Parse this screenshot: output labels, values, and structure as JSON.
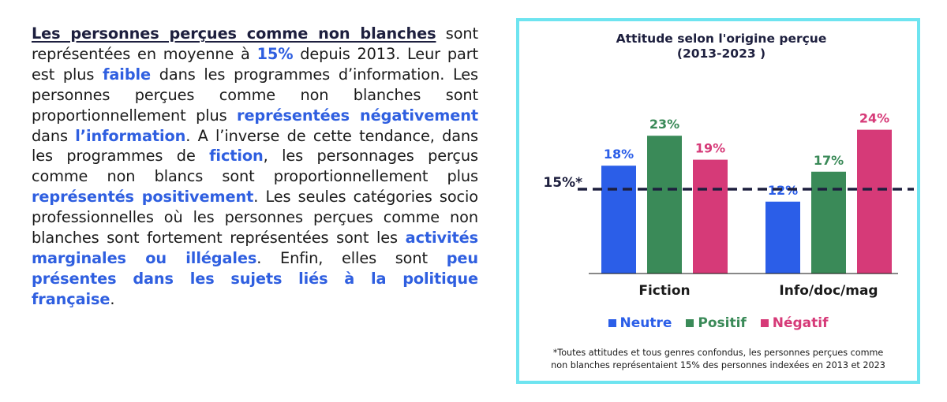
{
  "paragraph": {
    "lead": "Les personnes perçues comme non blanches",
    "t1": " sont représentées en moyenne à ",
    "h1": "15%",
    "t2": " depuis 2013. Leur part est plus ",
    "h2": "faible",
    "t3": " dans les programmes d’in­formation",
    "t4": ". Les personnes perçues comme non blanches sont proportionnellement plus ",
    "h4": "représen­tées négativement",
    "t5": " dans ",
    "h5": "l’information",
    "t6": ". A l’inverse de cette tendance, dans les programmes de ",
    "h6": "fiction",
    "t7": ", les personnages perçus comme non blancs sont pro­portionnellement plus ",
    "h7": "représentés positivement",
    "t8": ". Les seules catégories socio professionnelles où les personnes perçues comme non blanches sont forte­ment représentées sont les ",
    "h8": "activités marginales ou illégales",
    "t9": ". Enfin, elles sont ",
    "h9": "peu présentes dans les sujets liés à la politique française",
    "t10": "."
  },
  "chart_data": {
    "type": "bar",
    "title": "Attitude selon l'origine perçue",
    "subtitle": "(2013-2023 )",
    "categories": [
      "Fiction",
      "Info/doc/mag"
    ],
    "series": [
      {
        "name": "Neutre",
        "values": [
          18,
          12
        ],
        "labels": [
          "18%",
          "12%"
        ],
        "color": "#2b5ee8"
      },
      {
        "name": "Positif",
        "values": [
          23,
          17
        ],
        "labels": [
          "23%",
          "17%"
        ],
        "color": "#3a8a58"
      },
      {
        "name": "Négatif",
        "values": [
          19,
          24
        ],
        "labels": [
          "19%",
          "24%"
        ],
        "color": "#d63a78"
      }
    ],
    "reference_line": {
      "value": 15,
      "label": "15%*",
      "style": "dashed",
      "color": "#1d1f3e"
    },
    "ylim": [
      0,
      26
    ],
    "xlabel": "",
    "ylabel": "",
    "grid": false,
    "legend_position": "bottom",
    "footnote_line1": "*Toutes attitudes et tous genres confondus, les personnes perçues comme",
    "footnote_line2": "non blanches représentaient 15% des personnes indexées en 2013 et 2023"
  }
}
